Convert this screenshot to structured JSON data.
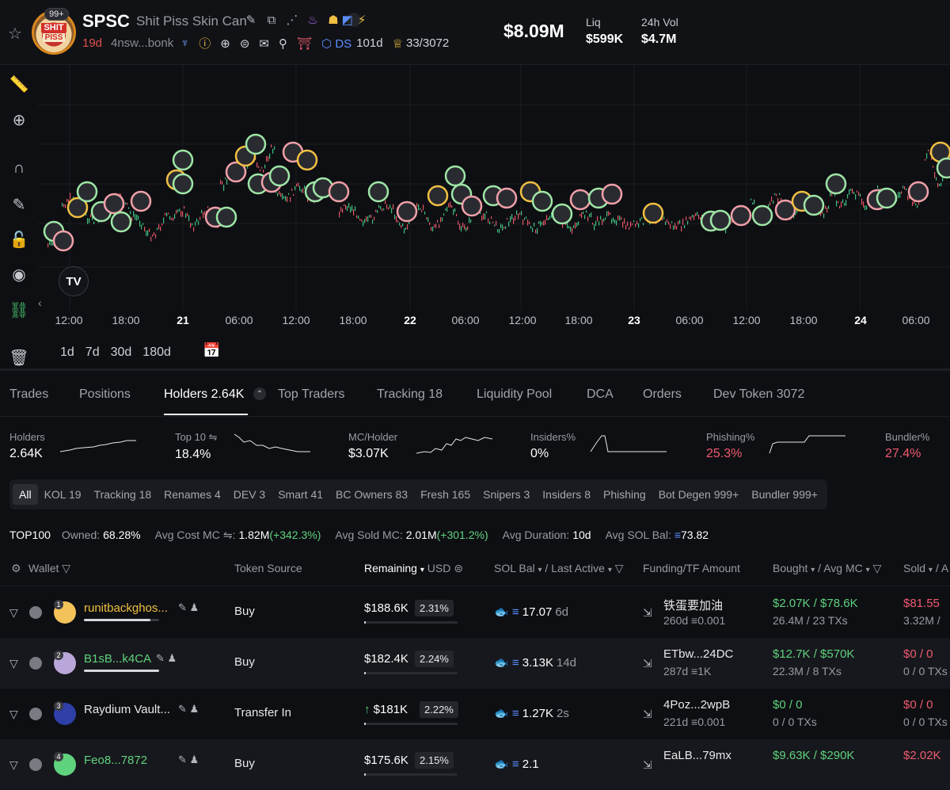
{
  "header": {
    "badge": "99+",
    "avatar_text_top": "SHIT",
    "avatar_text_bottom": "PISS",
    "symbol": "SPSC",
    "name": "Shit Piss Skin Can",
    "age": "19d",
    "address": "4nsw...bonk",
    "dex_label": "DS",
    "dex_age": "101d",
    "holders_ratio": "33/3072",
    "market_cap": "$8.09M",
    "liq_label": "Liq",
    "liq_value": "$599K",
    "vol_label": "24h Vol",
    "vol_value": "$4.7M"
  },
  "chart": {
    "tv_logo": "TV",
    "x_labels": [
      {
        "text": "12:00",
        "bold": false
      },
      {
        "text": "18:00",
        "bold": false
      },
      {
        "text": "21",
        "bold": true
      },
      {
        "text": "06:00",
        "bold": false
      },
      {
        "text": "12:00",
        "bold": false
      },
      {
        "text": "18:00",
        "bold": false
      },
      {
        "text": "22",
        "bold": true
      },
      {
        "text": "06:00",
        "bold": false
      },
      {
        "text": "12:00",
        "bold": false
      },
      {
        "text": "18:00",
        "bold": false
      },
      {
        "text": "23",
        "bold": true
      },
      {
        "text": "06:00",
        "bold": false
      },
      {
        "text": "12:00",
        "bold": false
      },
      {
        "text": "18:00",
        "bold": false
      },
      {
        "text": "24",
        "bold": true
      },
      {
        "text": "06:00",
        "bold": false
      }
    ],
    "ranges": [
      "1d",
      "7d",
      "30d",
      "180d"
    ]
  },
  "tabs": [
    {
      "label": "Trades",
      "active": false
    },
    {
      "label": "Positions",
      "active": false
    },
    {
      "label": "Holders 2.64K",
      "active": true
    },
    {
      "label": "Top Traders",
      "active": false
    },
    {
      "label": "Tracking 18",
      "active": false
    },
    {
      "label": "Liquidity Pool",
      "active": false
    },
    {
      "label": "DCA",
      "active": false
    },
    {
      "label": "Orders",
      "active": false
    },
    {
      "label": "Dev Token 3072",
      "active": false
    }
  ],
  "stats": [
    {
      "label": "Holders",
      "value": "2.64K",
      "red": false
    },
    {
      "label": "Top 10",
      "value": "18.4%",
      "red": false
    },
    {
      "label": "MC/Holder",
      "value": "$3.07K",
      "red": false
    },
    {
      "label": "Insiders%",
      "value": "0%",
      "red": false
    },
    {
      "label": "Phishing%",
      "value": "25.3%",
      "red": true
    },
    {
      "label": "Bundler%",
      "value": "27.4%",
      "red": true
    }
  ],
  "filters": [
    "All",
    "KOL 19",
    "Tracking 18",
    "Renames 4",
    "DEV 3",
    "Smart 41",
    "BC Owners 83",
    "Fresh 165",
    "Snipers 3",
    "Insiders 8",
    "Phishing",
    "Bot Degen 999+",
    "Bundler 999+"
  ],
  "summary": {
    "top": "TOP100",
    "owned_label": "Owned:",
    "owned_value": "68.28%",
    "avg_cost_label": "Avg Cost MC",
    "avg_cost_value": "1.82M",
    "avg_cost_change": "(+342.3%)",
    "avg_sold_label": "Avg Sold MC:",
    "avg_sold_value": "2.01M",
    "avg_sold_change": "(+301.2%)",
    "avg_dur_label": "Avg Duration:",
    "avg_dur_value": "10d",
    "avg_sol_label": "Avg SOL Bal:",
    "avg_sol_value": "73.82"
  },
  "table_headers": {
    "wallet": "Wallet",
    "token_source": "Token Source",
    "remaining": "Remaining",
    "usd": "USD",
    "sol_bal": "SOL Bal",
    "last_active": "Last Active",
    "funding": "Funding/TF Amount",
    "bought": "Bought",
    "avg_mc": "Avg MC",
    "sold": "Sold",
    "cut_off": "A"
  },
  "rows": [
    {
      "rank": "1",
      "wallet": "runitbackghos...",
      "name_color": "yellow",
      "wallet_bar": 0.88,
      "source": "Buy",
      "remaining": "$188.6K",
      "pct": "2.31%",
      "remaining_bar": 0.02,
      "sol": "17.07",
      "ago": "6d",
      "funding_name": "铁蛋要加油",
      "funding_age": "260d",
      "funding_amt": "0.001",
      "bought_usd": "$2.07K",
      "bought_mc": "$78.6K",
      "bought_sub": "26.4M / 23 TXs",
      "sold_usd": "$81.55",
      "sold_sub": "3.32M /"
    },
    {
      "rank": "2",
      "wallet": "B1sB...k4CA",
      "name_color": "green",
      "wallet_bar": 1.0,
      "source": "Buy",
      "remaining": "$182.4K",
      "pct": "2.24%",
      "remaining_bar": 0.02,
      "sol": "3.13K",
      "ago": "14d",
      "funding_name": "ETbw...24DC",
      "funding_age": "287d",
      "funding_amt": "1K",
      "bought_usd": "$12.7K",
      "bought_mc": "$570K",
      "bought_sub": "22.3M / 8 TXs",
      "sold_usd": "$0",
      "sold_mc": "0",
      "sold_sub": "0 / 0 TXs"
    },
    {
      "rank": "3",
      "wallet": "Raydium Vault...",
      "name_color": "white",
      "wallet_bar": 0,
      "source": "Transfer In",
      "remaining": "$181K",
      "pct": "2.22%",
      "remaining_bar": 0.0,
      "sol": "1.27K",
      "ago": "2s",
      "funding_name": "4Poz...2wpB",
      "funding_age": "221d",
      "funding_amt": "0.001",
      "bought_usd": "$0",
      "bought_mc": "0",
      "bought_sub": "0 / 0 TXs",
      "sold_usd": "$0",
      "sold_mc": "0",
      "sold_sub": "0 / 0 TXs"
    },
    {
      "rank": "4",
      "wallet": "Feo8...7872",
      "name_color": "green",
      "wallet_bar": 0,
      "source": "Buy",
      "remaining": "$175.6K",
      "pct": "2.15%",
      "remaining_bar": 0.0,
      "sol": "2.1",
      "ago": "",
      "funding_name": "EaLB...79mx",
      "funding_age": "",
      "funding_amt": "",
      "bought_usd": "$9.63K",
      "bought_mc": "$290K",
      "bought_sub": "",
      "sold_usd": "$2.02K",
      "sold_sub": ""
    }
  ],
  "colors": {
    "green": "#5fd27d",
    "red": "#ef5a6f",
    "yellow": "#f0c043",
    "bg": "#0e0f13"
  }
}
